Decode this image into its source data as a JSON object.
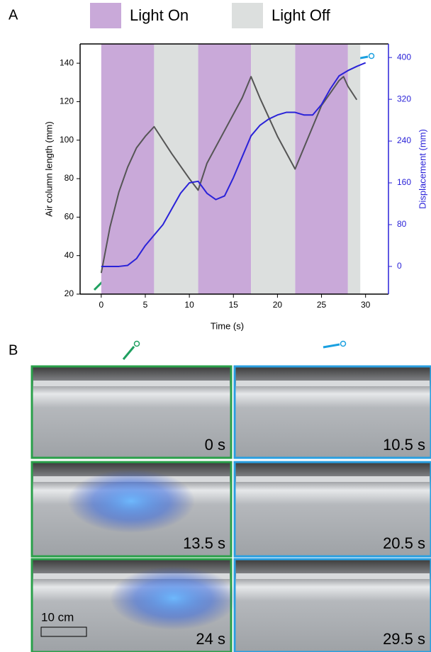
{
  "chart_data": {
    "type": "line",
    "legend": [
      {
        "label": "Light On",
        "color": "#c9a9d9"
      },
      {
        "label": "Light Off",
        "color": "#dcdfde"
      }
    ],
    "regions": [
      {
        "legend": 0,
        "spans": [
          [
            0,
            6
          ],
          [
            11,
            17
          ],
          [
            22,
            28
          ]
        ]
      },
      {
        "legend": 1,
        "spans": [
          [
            6,
            11
          ],
          [
            17,
            22
          ],
          [
            28,
            29.4
          ]
        ]
      }
    ],
    "x_label": "Time (s)",
    "y_label": "Air column length (mm)",
    "y2_label": "Displacement (mm)",
    "xlim": [
      -2.4,
      32.6
    ],
    "xticks": [
      0,
      5,
      10,
      15,
      20,
      25,
      30
    ],
    "ylim": [
      20,
      150
    ],
    "yticks": [
      20,
      40,
      60,
      80,
      100,
      120,
      140
    ],
    "y2lim": [
      -53,
      426
    ],
    "y2ticks": [
      0,
      80,
      160,
      240,
      320,
      400
    ],
    "series": [
      {
        "color": "#555555",
        "axis": "y",
        "x": [
          0,
          1,
          2,
          3,
          4,
          5,
          6,
          8,
          10,
          11,
          12,
          14,
          16,
          17,
          18,
          20,
          22,
          23,
          25,
          27,
          27.5,
          28,
          29
        ],
        "values": [
          31,
          55,
          73,
          86,
          96,
          102,
          107,
          93,
          80,
          74,
          88,
          105,
          122,
          133,
          122,
          102,
          85,
          96,
          118,
          131,
          133,
          128,
          121
        ]
      },
      {
        "color": "#2a22d8",
        "axis": "y2",
        "x": [
          0,
          2,
          3,
          4,
          5,
          6,
          7,
          8,
          9,
          10,
          11,
          12,
          13,
          14,
          15,
          16,
          17,
          18,
          19,
          20,
          21,
          22,
          23,
          24,
          25,
          26,
          27,
          28,
          29,
          30
        ],
        "values": [
          0,
          0,
          2,
          15,
          40,
          60,
          80,
          110,
          140,
          160,
          163,
          140,
          128,
          135,
          170,
          210,
          250,
          270,
          282,
          290,
          295,
          295,
          290,
          290,
          310,
          340,
          365,
          375,
          383,
          390
        ]
      }
    ]
  },
  "figure": {
    "panel_a": "A",
    "panel_b": "B",
    "scale_bar": "10 cm",
    "photos": [
      {
        "label": "0 s",
        "color": "#2aa04a"
      },
      {
        "label": "10.5 s",
        "color": "#2a9fe0"
      },
      {
        "label": "13.5 s",
        "color": "#2aa04a"
      },
      {
        "label": "20.5 s",
        "color": "#2a9fe0"
      },
      {
        "label": "24 s",
        "color": "#2aa04a"
      },
      {
        "label": "29.5 s",
        "color": "#2a9fe0"
      }
    ]
  }
}
